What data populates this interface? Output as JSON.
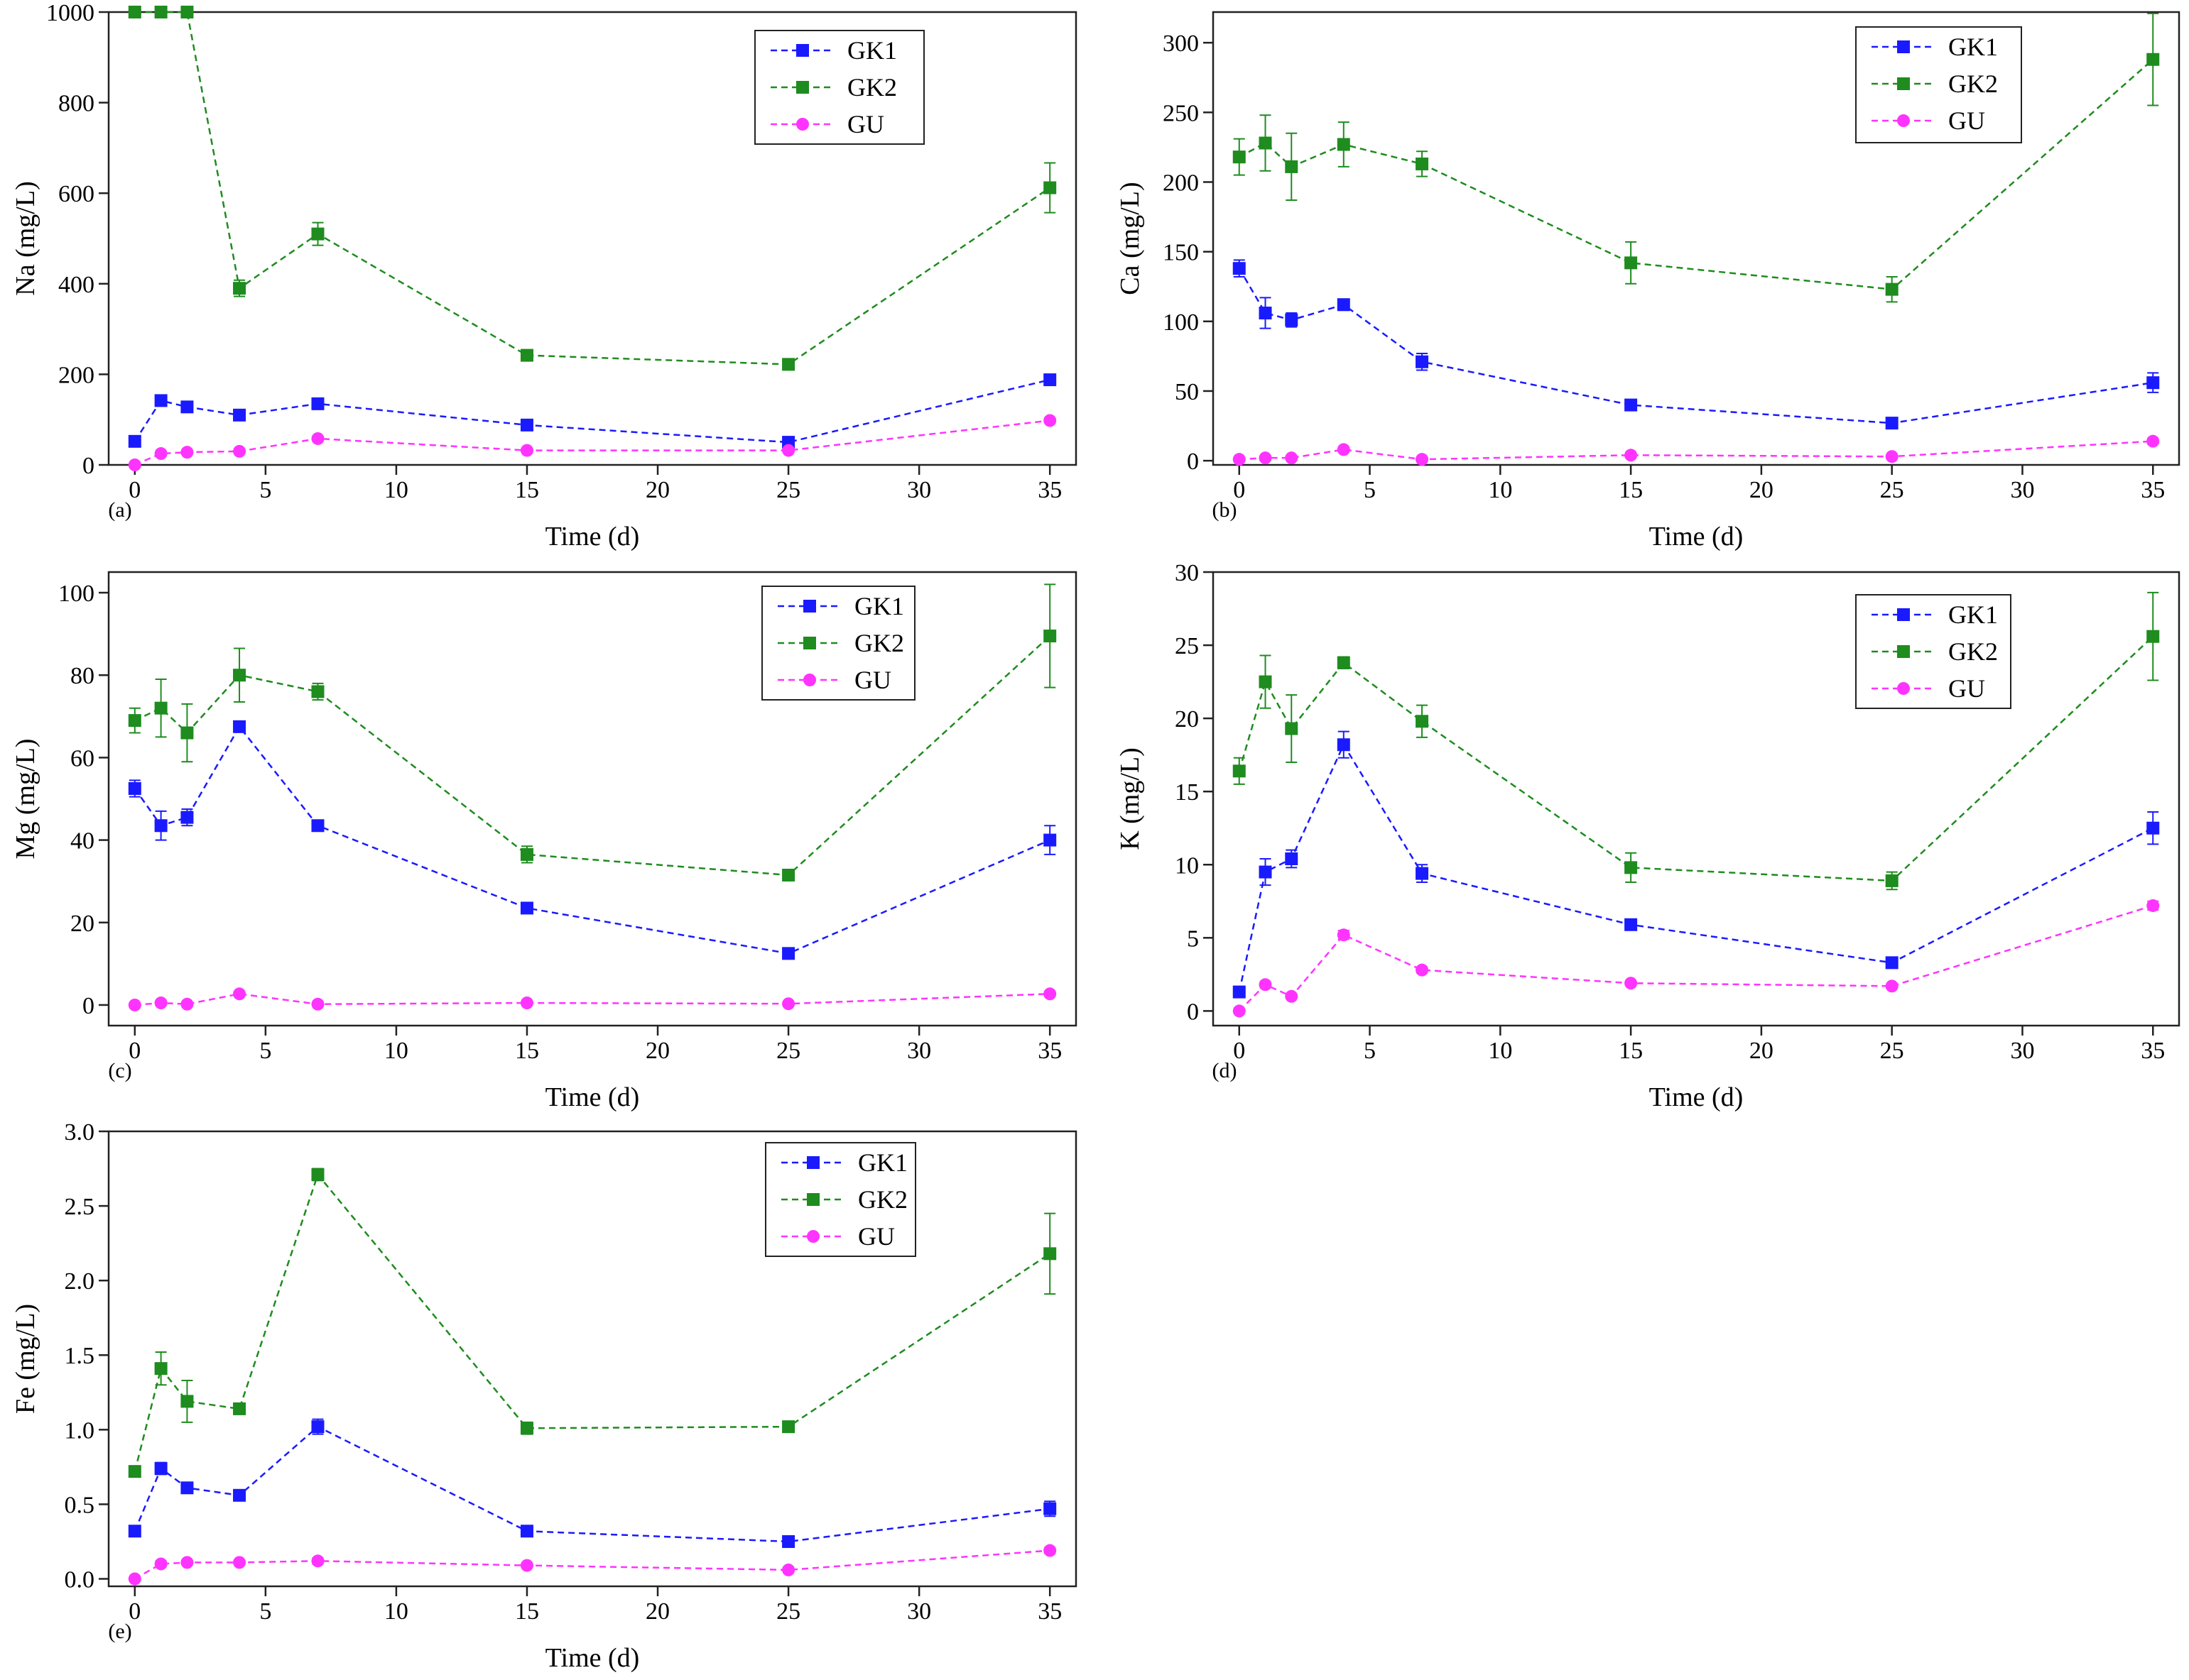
{
  "figure": {
    "x_categories": [
      0,
      1,
      2,
      4,
      7,
      15,
      25,
      35
    ],
    "series_colors": {
      "GK1": "#1a1aff",
      "GK2": "#1e8c1e",
      "GU": "#ff33ff"
    }
  },
  "chart_data": [
    {
      "type": "line",
      "panel_label": "(a)",
      "title": "",
      "xlabel": "Time (d)",
      "ylabel": "Na (mg/L)",
      "xlim": [
        -1,
        36
      ],
      "ylim": [
        0,
        1000
      ],
      "xticks": [
        "0",
        "5",
        "10",
        "15",
        "20",
        "25",
        "30",
        "35"
      ],
      "yticks": [
        "0",
        "200",
        "400",
        "600",
        "800",
        "1000"
      ],
      "x": [
        0,
        1,
        2,
        4,
        7,
        15,
        25,
        35
      ],
      "legend": [
        "GK1",
        "GK2",
        "GU"
      ],
      "series": [
        {
          "name": "GK1",
          "marker": "square",
          "values": [
            52,
            142,
            128,
            110,
            135,
            88,
            50,
            188
          ],
          "errors": [
            6,
            8,
            7,
            6,
            8,
            6,
            5,
            10
          ]
        },
        {
          "name": "GK2",
          "marker": "square",
          "values": [
            1000,
            1000,
            1000,
            390,
            510,
            242,
            222,
            612
          ],
          "errors": [
            0,
            0,
            0,
            18,
            25,
            10,
            8,
            55
          ]
        },
        {
          "name": "GU",
          "marker": "circle",
          "values": [
            0,
            25,
            28,
            30,
            58,
            32,
            32,
            98
          ],
          "errors": [
            0,
            3,
            3,
            3,
            4,
            3,
            3,
            5
          ]
        }
      ]
    },
    {
      "type": "line",
      "panel_label": "(b)",
      "title": "",
      "xlabel": "Time (d)",
      "ylabel": "Ca (mg/L)",
      "xlim": [
        -1,
        36
      ],
      "ylim": [
        -3,
        322
      ],
      "xticks": [
        "0",
        "5",
        "10",
        "15",
        "20",
        "25",
        "30",
        "35"
      ],
      "yticks": [
        "0",
        "50",
        "100",
        "150",
        "200",
        "250",
        "300"
      ],
      "x": [
        0,
        1,
        2,
        4,
        7,
        15,
        25,
        35
      ],
      "legend": [
        "GK1",
        "GK2",
        "GU"
      ],
      "series": [
        {
          "name": "GK1",
          "marker": "square",
          "values": [
            138,
            106,
            101,
            112,
            71,
            40,
            27,
            56
          ],
          "errors": [
            6,
            11,
            5,
            4,
            6,
            3,
            3,
            7
          ]
        },
        {
          "name": "GK2",
          "marker": "square",
          "values": [
            218,
            228,
            211,
            227,
            213,
            142,
            123,
            288
          ],
          "errors": [
            13,
            20,
            24,
            16,
            9,
            15,
            9,
            33
          ]
        },
        {
          "name": "GU",
          "marker": "circle",
          "values": [
            1,
            2,
            2,
            8,
            1,
            4,
            3,
            14
          ],
          "errors": [
            1,
            1,
            1,
            1,
            1,
            1,
            1,
            2
          ]
        }
      ]
    },
    {
      "type": "line",
      "panel_label": "(c)",
      "title": "",
      "xlabel": "Time (d)",
      "ylabel": "Mg (mg/L)",
      "xlim": [
        -1,
        36
      ],
      "ylim": [
        -5,
        105
      ],
      "xticks": [
        "0",
        "5",
        "10",
        "15",
        "20",
        "25",
        "30",
        "35"
      ],
      "yticks": [
        "0",
        "20",
        "40",
        "60",
        "80",
        "100"
      ],
      "x": [
        0,
        1,
        2,
        4,
        7,
        15,
        25,
        35
      ],
      "legend": [
        "GK1",
        "GK2",
        "GU"
      ],
      "series": [
        {
          "name": "GK1",
          "marker": "square",
          "values": [
            52.5,
            43.5,
            45.5,
            67.5,
            43.5,
            23.5,
            12.5,
            40
          ],
          "errors": [
            2,
            3.5,
            2,
            1,
            1,
            1,
            0.8,
            3.5
          ]
        },
        {
          "name": "GK2",
          "marker": "square",
          "values": [
            69,
            72,
            66,
            80,
            76,
            36.5,
            31.5,
            89.5
          ],
          "errors": [
            3,
            7,
            7,
            6.5,
            2,
            2,
            1,
            12.5
          ]
        },
        {
          "name": "GU",
          "marker": "circle",
          "values": [
            0,
            0.5,
            0.2,
            2.7,
            0.2,
            0.5,
            0.3,
            2.7
          ],
          "errors": [
            0.3,
            0.3,
            0.3,
            0.5,
            0.3,
            0.3,
            0.3,
            0.5
          ]
        }
      ]
    },
    {
      "type": "line",
      "panel_label": "(d)",
      "title": "",
      "xlabel": "Time (d)",
      "ylabel": "K (mg/L)",
      "xlim": [
        -1,
        36
      ],
      "ylim": [
        -1,
        30
      ],
      "xticks": [
        "0",
        "5",
        "10",
        "15",
        "20",
        "25",
        "30",
        "35"
      ],
      "yticks": [
        "0",
        "5",
        "10",
        "15",
        "20",
        "25",
        "30"
      ],
      "x": [
        0,
        1,
        2,
        4,
        7,
        15,
        25,
        35
      ],
      "legend": [
        "GK1",
        "GK2",
        "GU"
      ],
      "series": [
        {
          "name": "GK1",
          "marker": "square",
          "values": [
            1.3,
            9.5,
            10.4,
            18.2,
            9.4,
            5.9,
            3.3,
            12.5
          ],
          "errors": [
            0.3,
            0.9,
            0.6,
            0.9,
            0.6,
            0.3,
            0.3,
            1.1
          ]
        },
        {
          "name": "GK2",
          "marker": "square",
          "values": [
            16.4,
            22.5,
            19.3,
            23.8,
            19.8,
            9.8,
            8.9,
            25.6
          ],
          "errors": [
            0.9,
            1.8,
            2.3,
            0.4,
            1.1,
            1.0,
            0.6,
            3.0
          ]
        },
        {
          "name": "GU",
          "marker": "circle",
          "values": [
            0,
            1.8,
            1.0,
            5.2,
            2.8,
            1.9,
            1.7,
            7.2
          ],
          "errors": [
            0.1,
            0.2,
            0.1,
            0.3,
            0.2,
            0.1,
            0.1,
            0.3
          ]
        }
      ]
    },
    {
      "type": "line",
      "panel_label": "(e)",
      "title": "",
      "xlabel": "Time (d)",
      "ylabel": "Fe (mg/L)",
      "xlim": [
        -1,
        36
      ],
      "ylim": [
        -0.05,
        3.0
      ],
      "xticks": [
        "0",
        "5",
        "10",
        "15",
        "20",
        "25",
        "30",
        "35"
      ],
      "yticks": [
        "0.0",
        "0.5",
        "1.0",
        "1.5",
        "2.0",
        "2.5",
        "3.0"
      ],
      "x": [
        0,
        1,
        2,
        4,
        7,
        15,
        25,
        35
      ],
      "legend": [
        "GK1",
        "GK2",
        "GU"
      ],
      "series": [
        {
          "name": "GK1",
          "marker": "square",
          "values": [
            0.32,
            0.74,
            0.61,
            0.56,
            1.02,
            0.32,
            0.25,
            0.47
          ],
          "errors": [
            0.02,
            0.04,
            0.03,
            0.03,
            0.05,
            0.03,
            0.02,
            0.05
          ]
        },
        {
          "name": "GK2",
          "marker": "square",
          "values": [
            0.72,
            1.41,
            1.19,
            1.14,
            2.71,
            1.01,
            1.02,
            2.18
          ],
          "errors": [
            0.02,
            0.11,
            0.14,
            0.03,
            0.04,
            0.04,
            0.02,
            0.27
          ]
        },
        {
          "name": "GU",
          "marker": "circle",
          "values": [
            0.0,
            0.1,
            0.11,
            0.11,
            0.12,
            0.09,
            0.06,
            0.19
          ],
          "errors": [
            0.01,
            0.02,
            0.01,
            0.01,
            0.02,
            0.01,
            0.01,
            0.02
          ]
        }
      ]
    }
  ]
}
